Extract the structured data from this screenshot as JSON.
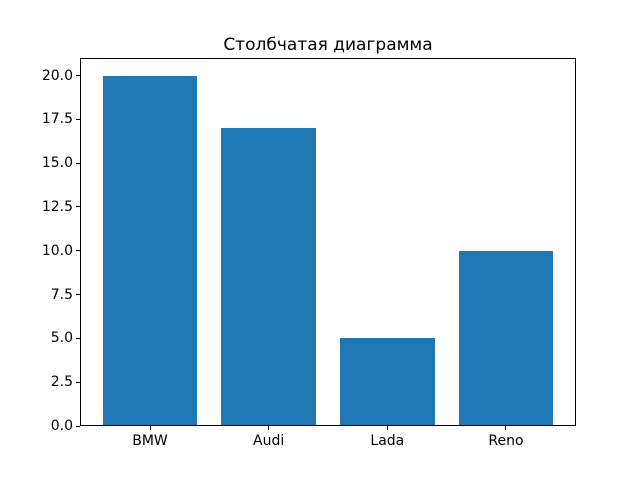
{
  "chart_data": {
    "type": "bar",
    "title": "Столбчатая диаграмма",
    "categories": [
      "BMW",
      "Audi",
      "Lada",
      "Reno"
    ],
    "values": [
      20,
      17,
      5,
      10
    ],
    "xlabel": "",
    "ylabel": "",
    "ylim": [
      0,
      21
    ],
    "yticks": [
      0.0,
      2.5,
      5.0,
      7.5,
      10.0,
      12.5,
      15.0,
      17.5,
      20.0
    ],
    "ytick_labels": [
      "0.0",
      "2.5",
      "5.0",
      "7.5",
      "10.0",
      "12.5",
      "15.0",
      "17.5",
      "20.0"
    ],
    "grid": false,
    "legend": null,
    "bar_color": "#1f77b4",
    "axis_color": "#000000",
    "background": "#ffffff"
  }
}
